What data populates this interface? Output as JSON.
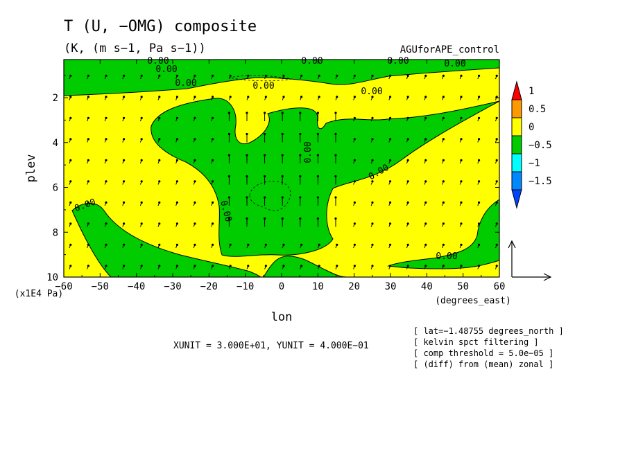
{
  "chart_data": {
    "type": "contour",
    "title": "T (U, −OMG) composite",
    "units_line": "(K, (m s−1, Pa s−1))",
    "dataset": "AGUforAPE_control",
    "xlabel": "lon",
    "xunits": "(degrees_east)",
    "ylabel": "plev",
    "yunits": "(x1E4 Pa)",
    "xlim": [
      -60,
      60
    ],
    "ylim": [
      10,
      0.3
    ],
    "xticks": [
      "−60",
      "−50",
      "−40",
      "−30",
      "−20",
      "−10",
      "0",
      "10",
      "20",
      "30",
      "40",
      "50",
      "60"
    ],
    "yticks": [
      "2",
      "4",
      "6",
      "8",
      "10"
    ],
    "contour_labels": [
      "0.00",
      "0.00",
      "0.00",
      "0.00",
      "0.00",
      "0.00",
      "0.00",
      "0.00",
      "0.00",
      "0.00",
      "0.00",
      "0.00"
    ],
    "colorbar": {
      "levels": [
        "1",
        "0.5",
        "0",
        "−0.5",
        "−1",
        "−1.5"
      ],
      "colors": [
        "#ff0000",
        "#ff9900",
        "#ffff00",
        "#00cc00",
        "#00ffff",
        "#0088ff",
        "#0044ff"
      ]
    },
    "vector_scale_note": "XUNIT = 3.000E+01, YUNIT = 4.000E−01",
    "notes": [
      "[ lat=−1.48755 degrees_north ]",
      "[ kelvin spct filtering ]",
      "[ comp threshold = 5.0e−05 ]",
      "[ (diff) from (mean) zonal ]"
    ]
  }
}
